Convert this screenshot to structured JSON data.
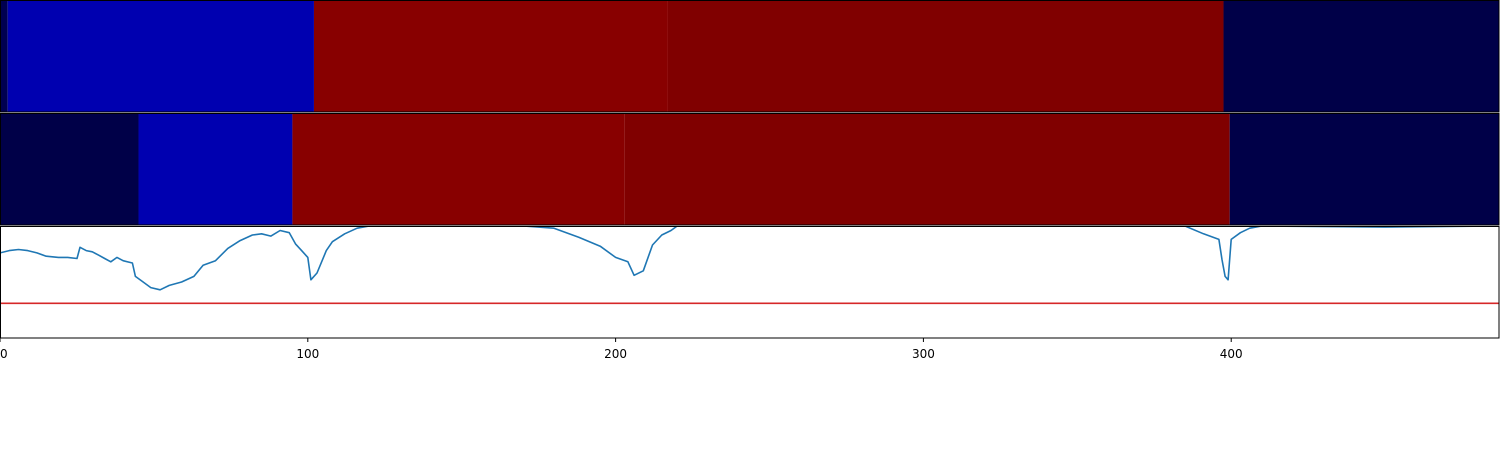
{
  "chart_data": {
    "type": "heatmap",
    "x_range": [
      0,
      487
    ],
    "xticks": [
      0,
      100,
      200,
      300,
      400
    ],
    "xtick_labels": [
      "0",
      "100",
      "200",
      "300",
      "400"
    ],
    "strip_1_segments": [
      {
        "start": 0,
        "end": 2.5,
        "color": "#000050"
      },
      {
        "start": 2.5,
        "end": 102,
        "color": "#0000b0"
      },
      {
        "start": 102,
        "end": 217,
        "color": "#880000"
      },
      {
        "start": 217,
        "end": 397.5,
        "color": "#800000"
      },
      {
        "start": 397.5,
        "end": 487,
        "color": "#000048"
      }
    ],
    "strip_2_segments": [
      {
        "start": 0,
        "end": 45,
        "color": "#000048"
      },
      {
        "start": 45,
        "end": 95,
        "color": "#0000b0"
      },
      {
        "start": 95,
        "end": 203,
        "color": "#880000"
      },
      {
        "start": 203,
        "end": 399.5,
        "color": "#800000"
      },
      {
        "start": 399.5,
        "end": 487,
        "color": "#000048"
      }
    ],
    "line_panel": {
      "y_range": [
        0,
        1
      ],
      "threshold": 0.31,
      "threshold_color": "#d62728",
      "line_color": "#1f77b4",
      "points": [
        [
          0,
          0.76
        ],
        [
          3,
          0.78
        ],
        [
          6,
          0.79
        ],
        [
          9,
          0.78
        ],
        [
          12,
          0.76
        ],
        [
          15,
          0.73
        ],
        [
          19,
          0.72
        ],
        [
          22,
          0.72
        ],
        [
          25,
          0.71
        ],
        [
          26,
          0.81
        ],
        [
          28,
          0.78
        ],
        [
          30,
          0.77
        ],
        [
          32,
          0.74
        ],
        [
          34,
          0.71
        ],
        [
          36,
          0.68
        ],
        [
          38,
          0.72
        ],
        [
          40,
          0.69
        ],
        [
          43,
          0.67
        ],
        [
          44,
          0.55
        ],
        [
          46,
          0.51
        ],
        [
          49,
          0.45
        ],
        [
          52,
          0.43
        ],
        [
          55,
          0.47
        ],
        [
          59,
          0.5
        ],
        [
          63,
          0.55
        ],
        [
          66,
          0.65
        ],
        [
          70,
          0.69
        ],
        [
          74,
          0.8
        ],
        [
          78,
          0.87
        ],
        [
          82,
          0.92
        ],
        [
          85,
          0.93
        ],
        [
          88,
          0.91
        ],
        [
          91,
          0.96
        ],
        [
          94,
          0.94
        ],
        [
          96,
          0.84
        ],
        [
          98,
          0.78
        ],
        [
          100,
          0.72
        ],
        [
          101,
          0.52
        ],
        [
          103,
          0.58
        ],
        [
          106,
          0.78
        ],
        [
          108,
          0.86
        ],
        [
          112,
          0.93
        ],
        [
          116,
          0.98
        ],
        [
          120,
          1.0
        ],
        [
          140,
          1.0
        ],
        [
          170,
          1.0
        ],
        [
          180,
          0.98
        ],
        [
          188,
          0.9
        ],
        [
          195,
          0.82
        ],
        [
          200,
          0.72
        ],
        [
          204,
          0.68
        ],
        [
          206,
          0.56
        ],
        [
          209,
          0.6
        ],
        [
          212,
          0.83
        ],
        [
          215,
          0.92
        ],
        [
          218,
          0.96
        ],
        [
          220,
          1.0
        ],
        [
          300,
          1.0
        ],
        [
          385,
          1.0
        ],
        [
          391,
          0.93
        ],
        [
          396,
          0.88
        ],
        [
          397,
          0.7
        ],
        [
          398,
          0.55
        ],
        [
          399,
          0.52
        ],
        [
          400,
          0.88
        ],
        [
          403,
          0.94
        ],
        [
          406,
          0.98
        ],
        [
          410,
          1.0
        ],
        [
          450,
          0.99
        ],
        [
          487,
          1.0
        ]
      ]
    }
  }
}
